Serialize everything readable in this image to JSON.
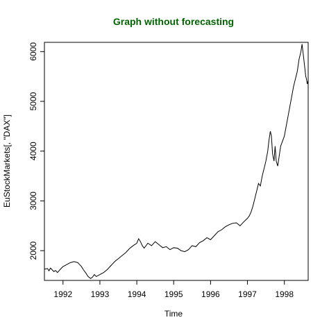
{
  "chart_data": {
    "type": "line",
    "title": "Graph without forecasting",
    "title_color": "#006400",
    "xlabel": "Time",
    "ylabel": "EuStockMarkets[, \"DAX\"]",
    "xlim": [
      1991.496,
      1998.646
    ],
    "ylim": [
      1402,
      6186
    ],
    "x_ticks": [
      1992,
      1993,
      1994,
      1995,
      1996,
      1997,
      1998
    ],
    "x_tick_labels": [
      "1992",
      "1993",
      "1994",
      "1995",
      "1996",
      "1997",
      "1998"
    ],
    "y_ticks": [
      2000,
      3000,
      4000,
      5000,
      6000
    ],
    "y_tick_labels": [
      "2000",
      "3000",
      "4000",
      "5000",
      "6000"
    ],
    "grid": false,
    "line_color": "#000000",
    "series": [
      {
        "x": [
          1991.5,
          1991.58,
          1991.62,
          1991.66,
          1991.7,
          1991.75,
          1991.8,
          1991.85,
          1991.92,
          1992.0,
          1992.1,
          1992.2,
          1992.3,
          1992.4,
          1992.45,
          1992.5,
          1992.55,
          1992.62,
          1992.68,
          1992.75,
          1992.8,
          1992.85,
          1992.9,
          1993.0,
          1993.1,
          1993.2,
          1993.3,
          1993.4,
          1993.5,
          1993.6,
          1993.7,
          1993.8,
          1993.9,
          1994.0,
          1994.05,
          1994.1,
          1994.15,
          1994.2,
          1994.3,
          1994.4,
          1994.5,
          1994.6,
          1994.7,
          1994.8,
          1994.9,
          1995.0,
          1995.1,
          1995.2,
          1995.3,
          1995.4,
          1995.5,
          1995.6,
          1995.7,
          1995.8,
          1995.9,
          1996.0,
          1996.1,
          1996.2,
          1996.3,
          1996.4,
          1996.5,
          1996.6,
          1996.7,
          1996.8,
          1996.9,
          1997.0,
          1997.05,
          1997.1,
          1997.15,
          1997.2,
          1997.25,
          1997.3,
          1997.35,
          1997.4,
          1997.45,
          1997.5,
          1997.55,
          1997.58,
          1997.62,
          1997.65,
          1997.68,
          1997.72,
          1997.75,
          1997.78,
          1997.82,
          1997.86,
          1997.9,
          1997.95,
          1998.0,
          1998.05,
          1998.1,
          1998.15,
          1998.2,
          1998.25,
          1998.3,
          1998.35,
          1998.4,
          1998.45,
          1998.48,
          1998.52,
          1998.55,
          1998.58,
          1998.6,
          1998.62,
          1998.646
        ],
        "values": [
          1628,
          1640,
          1595,
          1650,
          1620,
          1580,
          1600,
          1560,
          1620,
          1680,
          1720,
          1760,
          1780,
          1760,
          1720,
          1680,
          1620,
          1550,
          1480,
          1440,
          1470,
          1520,
          1480,
          1520,
          1560,
          1620,
          1700,
          1780,
          1840,
          1900,
          1960,
          2040,
          2100,
          2150,
          2240,
          2180,
          2100,
          2050,
          2150,
          2100,
          2180,
          2120,
          2060,
          2080,
          2020,
          2060,
          2050,
          2000,
          1980,
          2020,
          2100,
          2080,
          2160,
          2200,
          2260,
          2220,
          2300,
          2380,
          2420,
          2480,
          2520,
          2550,
          2560,
          2500,
          2580,
          2650,
          2700,
          2780,
          2900,
          3050,
          3200,
          3350,
          3300,
          3500,
          3650,
          3800,
          4000,
          4200,
          4400,
          4300,
          3950,
          3800,
          4100,
          3800,
          3700,
          3900,
          4100,
          4200,
          4300,
          4500,
          4700,
          4900,
          5100,
          5300,
          5450,
          5600,
          5850,
          6000,
          6150,
          5900,
          5700,
          5500,
          5450,
          5350,
          5420
        ]
      }
    ]
  }
}
